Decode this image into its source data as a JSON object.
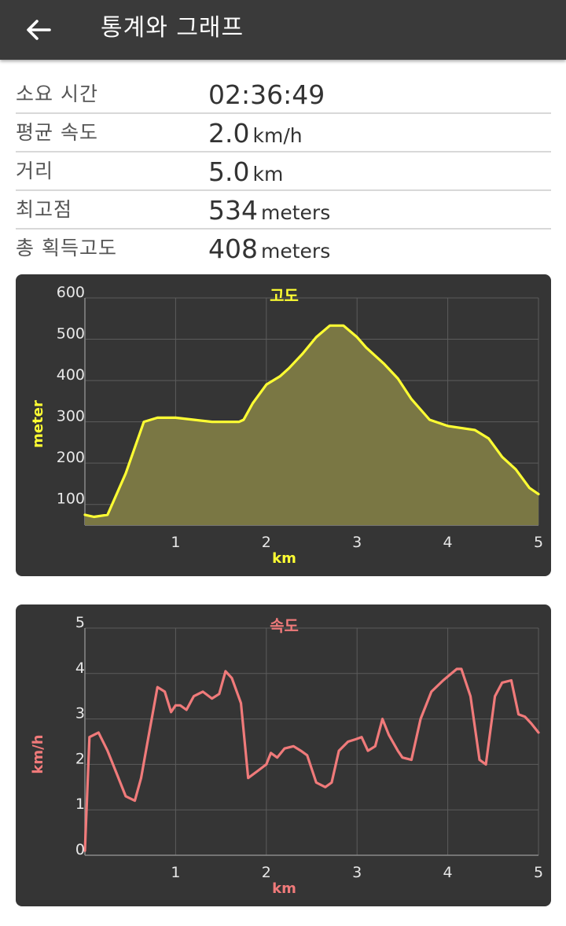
{
  "appbar": {
    "title": "통계와 그래프",
    "back_icon": "arrow-left-icon"
  },
  "stats": [
    {
      "label": "소요 시간",
      "value": "02:36:49",
      "unit": ""
    },
    {
      "label": "평균 속도",
      "value": "2.0",
      "unit": "km/h"
    },
    {
      "label": "거리",
      "value": "5.0",
      "unit": "km"
    },
    {
      "label": "최고점",
      "value": "534",
      "unit": "meters"
    },
    {
      "label": "총 획득고도",
      "value": "408",
      "unit": "meters"
    }
  ],
  "chart_data": [
    {
      "type": "area",
      "title": "고도",
      "xlabel": "km",
      "ylabel": "meter",
      "xlim": [
        0,
        5
      ],
      "ylim": [
        50,
        600
      ],
      "xticks": [
        "1",
        "2",
        "3",
        "4",
        "5"
      ],
      "yticks": [
        "100",
        "200",
        "300",
        "400",
        "500",
        "600"
      ],
      "grid": true,
      "line_color": "#ffff33",
      "fill_color": "#7a7744",
      "x": [
        0,
        0.1,
        0.25,
        0.45,
        0.65,
        0.8,
        1.0,
        1.2,
        1.4,
        1.6,
        1.7,
        1.75,
        1.85,
        2.0,
        2.15,
        2.25,
        2.4,
        2.55,
        2.7,
        2.85,
        3.0,
        3.1,
        3.3,
        3.45,
        3.6,
        3.8,
        4.0,
        4.3,
        4.45,
        4.6,
        4.75,
        4.9,
        5.0
      ],
      "y": [
        75,
        70,
        75,
        175,
        300,
        310,
        310,
        305,
        300,
        300,
        300,
        305,
        345,
        390,
        410,
        430,
        465,
        505,
        533,
        533,
        505,
        480,
        440,
        405,
        355,
        305,
        290,
        280,
        260,
        215,
        185,
        140,
        125
      ]
    },
    {
      "type": "line",
      "title": "속도",
      "xlabel": "km",
      "ylabel": "km/h",
      "xlim": [
        0,
        5
      ],
      "ylim": [
        0,
        5
      ],
      "xticks": [
        "1",
        "2",
        "3",
        "4",
        "5"
      ],
      "yticks": [
        "0",
        "1",
        "2",
        "3",
        "4",
        "5"
      ],
      "grid": true,
      "line_color": "#f07a7a",
      "x": [
        0,
        0.05,
        0.15,
        0.25,
        0.35,
        0.45,
        0.55,
        0.62,
        0.7,
        0.8,
        0.88,
        0.95,
        1.0,
        1.05,
        1.12,
        1.2,
        1.3,
        1.4,
        1.48,
        1.55,
        1.62,
        1.72,
        1.8,
        1.9,
        2.0,
        2.05,
        2.12,
        2.2,
        2.3,
        2.38,
        2.45,
        2.55,
        2.65,
        2.72,
        2.8,
        2.9,
        2.98,
        3.05,
        3.12,
        3.2,
        3.28,
        3.35,
        3.45,
        3.5,
        3.6,
        3.7,
        3.82,
        3.95,
        4.1,
        4.15,
        4.25,
        4.35,
        4.42,
        4.52,
        4.6,
        4.7,
        4.78,
        4.85,
        4.92,
        5.0
      ],
      "y": [
        0.1,
        2.6,
        2.7,
        2.3,
        1.8,
        1.3,
        1.2,
        1.7,
        2.6,
        3.7,
        3.6,
        3.15,
        3.3,
        3.3,
        3.2,
        3.5,
        3.6,
        3.45,
        3.55,
        4.05,
        3.9,
        3.35,
        1.7,
        1.85,
        2.0,
        2.25,
        2.15,
        2.35,
        2.4,
        2.3,
        2.2,
        1.6,
        1.5,
        1.6,
        2.3,
        2.5,
        2.55,
        2.6,
        2.3,
        2.4,
        3.0,
        2.65,
        2.3,
        2.15,
        2.1,
        3.0,
        3.6,
        3.85,
        4.1,
        4.1,
        3.5,
        2.1,
        2.0,
        3.5,
        3.8,
        3.85,
        3.1,
        3.05,
        2.9,
        2.7
      ]
    }
  ]
}
